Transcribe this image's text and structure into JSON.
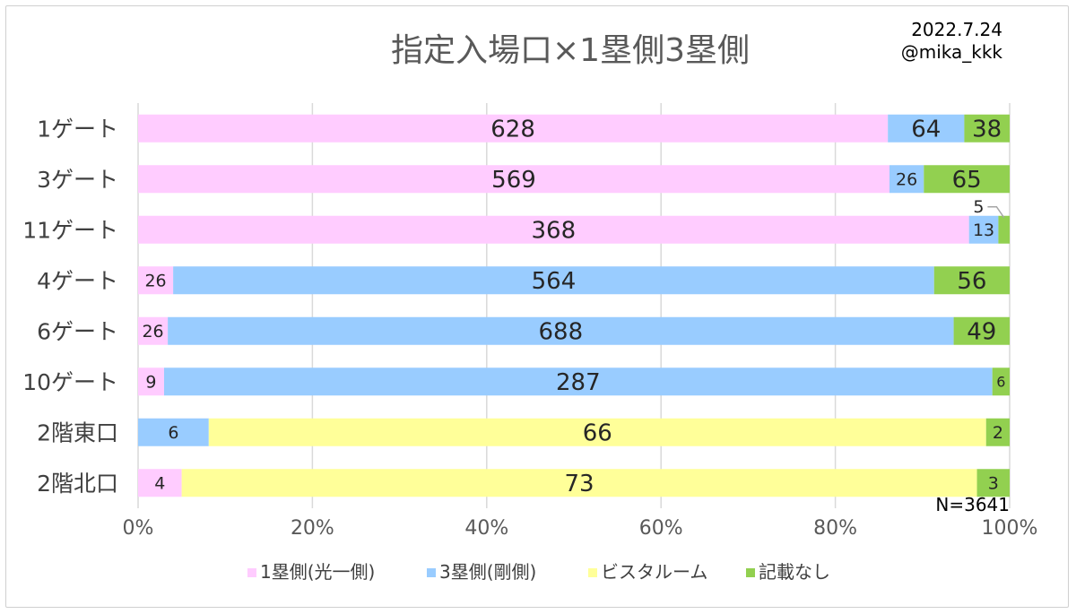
{
  "chart_data": {
    "type": "bar",
    "orientation": "horizontal",
    "stacked": "percent",
    "title": "指定入場口×1塁側3塁側",
    "date": "2022.7.24",
    "author": "@mika_kkk",
    "note": "N=3641",
    "categories": [
      "1ゲート",
      "3ゲート",
      "11ゲート",
      "4ゲート",
      "6ゲート",
      "10ゲート",
      "2階東口",
      "2階北口"
    ],
    "series": [
      {
        "name": "1塁側(光一側)",
        "color": "#ffccff",
        "values": [
          628,
          569,
          368,
          26,
          26,
          9,
          0,
          4
        ]
      },
      {
        "name": "3塁側(剛側)",
        "color": "#99ccff",
        "values": [
          64,
          26,
          13,
          564,
          688,
          287,
          6,
          0
        ]
      },
      {
        "name": "ビスタルーム",
        "color": "#ffff99",
        "values": [
          0,
          0,
          0,
          0,
          0,
          0,
          66,
          73
        ]
      },
      {
        "name": "記載なし",
        "color": "#92d050",
        "values": [
          38,
          65,
          5,
          56,
          49,
          6,
          2,
          3
        ]
      }
    ],
    "xticks": [
      "0%",
      "20%",
      "40%",
      "60%",
      "80%",
      "100%"
    ],
    "xlim": [
      0,
      100
    ],
    "grid": true,
    "legend": "bottom"
  }
}
